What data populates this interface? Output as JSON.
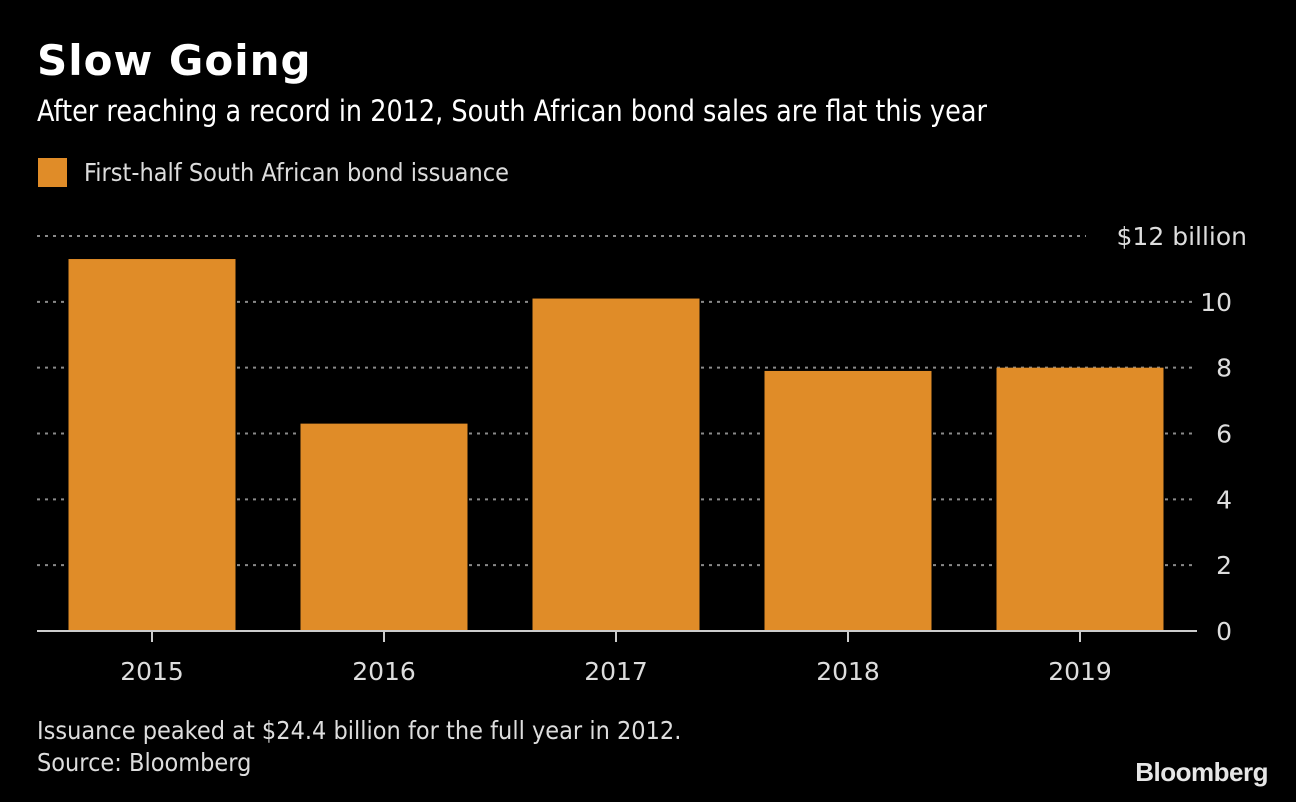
{
  "header": {
    "title": "Slow Going",
    "subtitle": "After reaching a record in 2012, South African bond sales are flat this year"
  },
  "footer": {
    "note": "Issuance peaked at $24.4 billion for the full year in 2012.",
    "source": "Source: Bloomberg",
    "brand": "Bloomberg"
  },
  "chart_data": {
    "type": "bar",
    "title": "Slow Going",
    "subtitle": "After reaching a record in 2012, South African bond sales are flat this year",
    "categories": [
      "2015",
      "2016",
      "2017",
      "2018",
      "2019"
    ],
    "series": [
      {
        "name": "First-half South African bond issuance",
        "color": "#e08c28",
        "values": [
          11.3,
          6.3,
          10.1,
          7.9,
          8.0
        ]
      }
    ],
    "xlabel": "",
    "ylabel": "$ billion",
    "ylim": [
      0,
      12
    ],
    "yticks": [
      0,
      2,
      4,
      6,
      8,
      10,
      12
    ],
    "ytick_labels": [
      "0",
      "2",
      "4",
      "6",
      "8",
      "10",
      "$12 billion"
    ],
    "grid": true,
    "legend": "top-left"
  }
}
